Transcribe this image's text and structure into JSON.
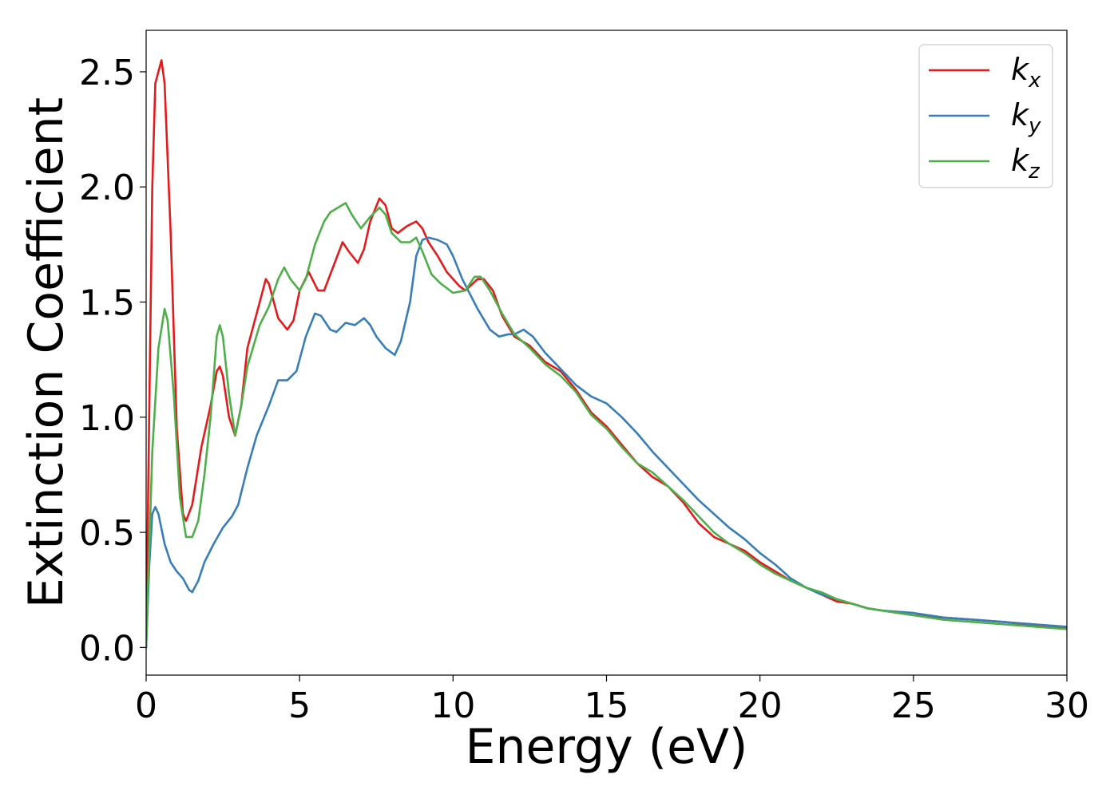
{
  "chart_data": {
    "type": "line",
    "title": "",
    "xlabel": "Energy (eV)",
    "ylabel": "Extinction Coefficient",
    "xlim": [
      0,
      30
    ],
    "ylim": [
      -0.12,
      2.68
    ],
    "xticks": [
      0,
      5,
      10,
      15,
      20,
      25,
      30
    ],
    "xtick_labels": [
      "0",
      "5",
      "10",
      "15",
      "20",
      "25",
      "30"
    ],
    "yticks": [
      0.0,
      0.5,
      1.0,
      1.5,
      2.0,
      2.5
    ],
    "ytick_labels": [
      "0.0",
      "0.5",
      "1.0",
      "1.5",
      "2.0",
      "2.5"
    ],
    "grid": false,
    "legend_position": "top-right",
    "series": [
      {
        "name": "k",
        "subscript": "x",
        "color": "#e41a1c",
        "points": [
          [
            0,
            0.0
          ],
          [
            0.1,
            1.0
          ],
          [
            0.2,
            2.0
          ],
          [
            0.3,
            2.45
          ],
          [
            0.5,
            2.55
          ],
          [
            0.6,
            2.45
          ],
          [
            0.8,
            1.8
          ],
          [
            1.0,
            0.95
          ],
          [
            1.2,
            0.58
          ],
          [
            1.3,
            0.55
          ],
          [
            1.5,
            0.62
          ],
          [
            1.8,
            0.87
          ],
          [
            2.1,
            1.05
          ],
          [
            2.3,
            1.2
          ],
          [
            2.4,
            1.22
          ],
          [
            2.5,
            1.18
          ],
          [
            2.7,
            1.0
          ],
          [
            2.9,
            0.92
          ],
          [
            3.1,
            1.05
          ],
          [
            3.3,
            1.3
          ],
          [
            3.6,
            1.45
          ],
          [
            3.9,
            1.6
          ],
          [
            4.0,
            1.58
          ],
          [
            4.3,
            1.43
          ],
          [
            4.6,
            1.38
          ],
          [
            4.8,
            1.42
          ],
          [
            5.0,
            1.55
          ],
          [
            5.3,
            1.63
          ],
          [
            5.6,
            1.55
          ],
          [
            5.8,
            1.55
          ],
          [
            6.0,
            1.62
          ],
          [
            6.4,
            1.76
          ],
          [
            6.6,
            1.72
          ],
          [
            6.9,
            1.67
          ],
          [
            7.1,
            1.73
          ],
          [
            7.3,
            1.85
          ],
          [
            7.6,
            1.95
          ],
          [
            7.8,
            1.92
          ],
          [
            8.0,
            1.82
          ],
          [
            8.2,
            1.8
          ],
          [
            8.5,
            1.83
          ],
          [
            8.8,
            1.85
          ],
          [
            9.0,
            1.82
          ],
          [
            9.2,
            1.76
          ],
          [
            9.5,
            1.7
          ],
          [
            9.8,
            1.63
          ],
          [
            10.2,
            1.57
          ],
          [
            10.4,
            1.55
          ],
          [
            10.8,
            1.6
          ],
          [
            11.0,
            1.6
          ],
          [
            11.3,
            1.55
          ],
          [
            11.6,
            1.44
          ],
          [
            12.0,
            1.35
          ],
          [
            12.5,
            1.31
          ],
          [
            13.0,
            1.24
          ],
          [
            13.5,
            1.2
          ],
          [
            14.0,
            1.12
          ],
          [
            14.5,
            1.02
          ],
          [
            15.0,
            0.96
          ],
          [
            15.5,
            0.88
          ],
          [
            16.0,
            0.8
          ],
          [
            16.5,
            0.74
          ],
          [
            17.0,
            0.7
          ],
          [
            17.5,
            0.63
          ],
          [
            18.0,
            0.54
          ],
          [
            18.5,
            0.48
          ],
          [
            19.0,
            0.45
          ],
          [
            19.5,
            0.42
          ],
          [
            20.0,
            0.37
          ],
          [
            20.5,
            0.33
          ],
          [
            21.0,
            0.29
          ],
          [
            21.5,
            0.26
          ],
          [
            22.0,
            0.23
          ],
          [
            22.5,
            0.2
          ],
          [
            23.0,
            0.19
          ],
          [
            23.5,
            0.17
          ],
          [
            24.0,
            0.16
          ],
          [
            25.0,
            0.14
          ],
          [
            26.0,
            0.13
          ],
          [
            27.0,
            0.12
          ],
          [
            28.0,
            0.11
          ],
          [
            29.0,
            0.095
          ],
          [
            30.0,
            0.085
          ]
        ]
      },
      {
        "name": "k",
        "subscript": "y",
        "color": "#377eb8",
        "points": [
          [
            0,
            0.0
          ],
          [
            0.1,
            0.35
          ],
          [
            0.2,
            0.58
          ],
          [
            0.3,
            0.61
          ],
          [
            0.4,
            0.58
          ],
          [
            0.6,
            0.45
          ],
          [
            0.8,
            0.37
          ],
          [
            1.0,
            0.33
          ],
          [
            1.2,
            0.3
          ],
          [
            1.4,
            0.25
          ],
          [
            1.5,
            0.24
          ],
          [
            1.7,
            0.29
          ],
          [
            1.9,
            0.37
          ],
          [
            2.2,
            0.45
          ],
          [
            2.5,
            0.52
          ],
          [
            2.8,
            0.57
          ],
          [
            3.0,
            0.62
          ],
          [
            3.3,
            0.78
          ],
          [
            3.6,
            0.92
          ],
          [
            4.0,
            1.05
          ],
          [
            4.3,
            1.16
          ],
          [
            4.6,
            1.16
          ],
          [
            4.9,
            1.2
          ],
          [
            5.2,
            1.35
          ],
          [
            5.5,
            1.45
          ],
          [
            5.7,
            1.44
          ],
          [
            6.0,
            1.38
          ],
          [
            6.2,
            1.37
          ],
          [
            6.5,
            1.41
          ],
          [
            6.8,
            1.4
          ],
          [
            7.1,
            1.43
          ],
          [
            7.3,
            1.4
          ],
          [
            7.5,
            1.35
          ],
          [
            7.8,
            1.3
          ],
          [
            8.1,
            1.27
          ],
          [
            8.3,
            1.33
          ],
          [
            8.6,
            1.5
          ],
          [
            8.8,
            1.7
          ],
          [
            9.0,
            1.77
          ],
          [
            9.2,
            1.78
          ],
          [
            9.5,
            1.77
          ],
          [
            9.8,
            1.75
          ],
          [
            10.0,
            1.7
          ],
          [
            10.3,
            1.6
          ],
          [
            10.8,
            1.47
          ],
          [
            11.2,
            1.38
          ],
          [
            11.5,
            1.35
          ],
          [
            11.8,
            1.36
          ],
          [
            12.0,
            1.36
          ],
          [
            12.3,
            1.38
          ],
          [
            12.6,
            1.35
          ],
          [
            13.0,
            1.28
          ],
          [
            13.5,
            1.21
          ],
          [
            14.0,
            1.14
          ],
          [
            14.5,
            1.09
          ],
          [
            15.0,
            1.06
          ],
          [
            15.5,
            1.0
          ],
          [
            16.0,
            0.93
          ],
          [
            16.5,
            0.85
          ],
          [
            17.0,
            0.78
          ],
          [
            17.5,
            0.71
          ],
          [
            18.0,
            0.64
          ],
          [
            18.5,
            0.58
          ],
          [
            19.0,
            0.52
          ],
          [
            19.5,
            0.47
          ],
          [
            20.0,
            0.41
          ],
          [
            20.5,
            0.36
          ],
          [
            21.0,
            0.3
          ],
          [
            21.5,
            0.26
          ],
          [
            22.0,
            0.23
          ],
          [
            22.5,
            0.21
          ],
          [
            23.0,
            0.19
          ],
          [
            23.5,
            0.17
          ],
          [
            24.0,
            0.16
          ],
          [
            25.0,
            0.15
          ],
          [
            26.0,
            0.13
          ],
          [
            27.0,
            0.12
          ],
          [
            28.0,
            0.11
          ],
          [
            29.0,
            0.1
          ],
          [
            30.0,
            0.09
          ]
        ]
      },
      {
        "name": "k",
        "subscript": "z",
        "color": "#4daf4a",
        "points": [
          [
            0,
            0.0
          ],
          [
            0.2,
            0.85
          ],
          [
            0.4,
            1.3
          ],
          [
            0.6,
            1.47
          ],
          [
            0.7,
            1.42
          ],
          [
            0.9,
            1.1
          ],
          [
            1.1,
            0.65
          ],
          [
            1.3,
            0.48
          ],
          [
            1.5,
            0.48
          ],
          [
            1.7,
            0.55
          ],
          [
            1.9,
            0.75
          ],
          [
            2.1,
            1.0
          ],
          [
            2.3,
            1.35
          ],
          [
            2.4,
            1.4
          ],
          [
            2.5,
            1.35
          ],
          [
            2.7,
            1.1
          ],
          [
            2.9,
            0.92
          ],
          [
            3.1,
            1.05
          ],
          [
            3.3,
            1.22
          ],
          [
            3.7,
            1.4
          ],
          [
            4.0,
            1.48
          ],
          [
            4.3,
            1.6
          ],
          [
            4.5,
            1.65
          ],
          [
            4.7,
            1.6
          ],
          [
            5.0,
            1.55
          ],
          [
            5.2,
            1.6
          ],
          [
            5.5,
            1.75
          ],
          [
            5.8,
            1.85
          ],
          [
            6.0,
            1.89
          ],
          [
            6.5,
            1.93
          ],
          [
            6.7,
            1.88
          ],
          [
            7.0,
            1.82
          ],
          [
            7.3,
            1.87
          ],
          [
            7.6,
            1.91
          ],
          [
            7.8,
            1.88
          ],
          [
            8.0,
            1.8
          ],
          [
            8.3,
            1.76
          ],
          [
            8.6,
            1.76
          ],
          [
            8.8,
            1.78
          ],
          [
            9.0,
            1.72
          ],
          [
            9.3,
            1.62
          ],
          [
            9.6,
            1.58
          ],
          [
            10.0,
            1.54
          ],
          [
            10.4,
            1.55
          ],
          [
            10.7,
            1.61
          ],
          [
            10.9,
            1.61
          ],
          [
            11.2,
            1.55
          ],
          [
            11.6,
            1.45
          ],
          [
            12.0,
            1.36
          ],
          [
            12.5,
            1.3
          ],
          [
            13.0,
            1.23
          ],
          [
            13.5,
            1.18
          ],
          [
            14.0,
            1.11
          ],
          [
            14.5,
            1.01
          ],
          [
            15.0,
            0.95
          ],
          [
            15.5,
            0.87
          ],
          [
            16.0,
            0.8
          ],
          [
            16.5,
            0.76
          ],
          [
            17.0,
            0.7
          ],
          [
            17.5,
            0.64
          ],
          [
            18.0,
            0.57
          ],
          [
            18.5,
            0.5
          ],
          [
            19.0,
            0.45
          ],
          [
            19.5,
            0.41
          ],
          [
            20.0,
            0.36
          ],
          [
            20.5,
            0.32
          ],
          [
            21.0,
            0.29
          ],
          [
            21.5,
            0.26
          ],
          [
            22.0,
            0.24
          ],
          [
            22.5,
            0.21
          ],
          [
            23.0,
            0.19
          ],
          [
            23.5,
            0.17
          ],
          [
            24.0,
            0.16
          ],
          [
            25.0,
            0.14
          ],
          [
            26.0,
            0.12
          ],
          [
            27.0,
            0.11
          ],
          [
            28.0,
            0.1
          ],
          [
            29.0,
            0.09
          ],
          [
            30.0,
            0.08
          ]
        ]
      }
    ]
  }
}
